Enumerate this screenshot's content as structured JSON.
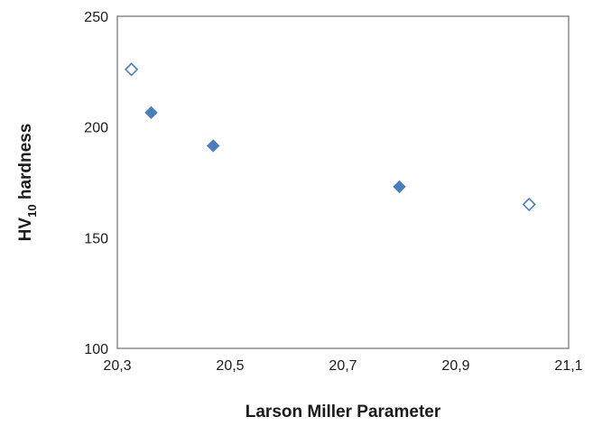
{
  "chart_data": {
    "type": "scatter",
    "xlabel": "Larson Miller Parameter",
    "ylabel_main": "HV",
    "ylabel_sub": "10",
    "ylabel_rest": " hardness",
    "xlim": [
      20.3,
      21.1
    ],
    "ylim": [
      100,
      250
    ],
    "xticks": [
      20.3,
      20.5,
      20.7,
      20.9,
      21.1
    ],
    "xtick_labels": [
      "20,3",
      "20,5",
      "20,7",
      "20,9",
      "21,1"
    ],
    "yticks": [
      100,
      150,
      200,
      250
    ],
    "ytick_labels": [
      "100",
      "150",
      "200",
      "250"
    ],
    "grid": false,
    "legend": false,
    "series": [
      {
        "marker": "filled-diamond",
        "color": "#4a7ebb",
        "points": [
          {
            "x": 20.36,
            "y": 206.5
          },
          {
            "x": 20.47,
            "y": 191.5
          },
          {
            "x": 20.8,
            "y": 173
          }
        ]
      },
      {
        "marker": "open-diamond",
        "color": "#4a7ebb",
        "points": [
          {
            "x": 20.325,
            "y": 226
          },
          {
            "x": 21.03,
            "y": 165
          }
        ]
      }
    ]
  },
  "colors": {
    "marker": "#4a7ebb",
    "frame": "#8c8c8c",
    "text": "#1a1a1a"
  }
}
